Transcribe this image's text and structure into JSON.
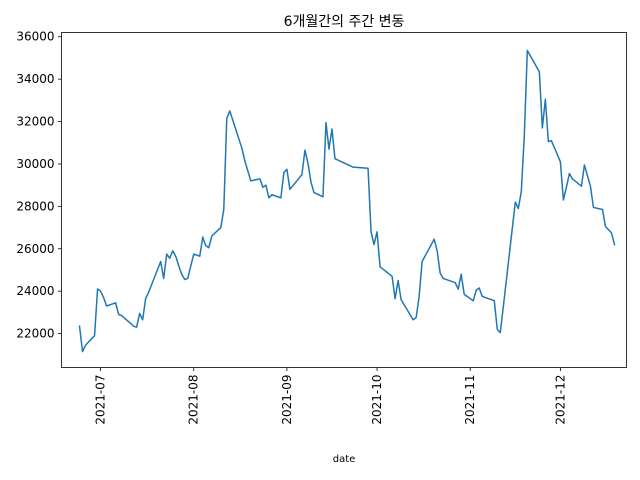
{
  "chart_data": {
    "type": "line",
    "title": "6개월간의 주간 변동",
    "xlabel": "date",
    "ylabel": "",
    "xlim": [
      "2021-06-18",
      "2021-12-23"
    ],
    "ylim": [
      20400,
      36200
    ],
    "grid": false,
    "x_ticks": [
      {
        "date": "2021-07-01",
        "label": "2021-07"
      },
      {
        "date": "2021-08-01",
        "label": "2021-08"
      },
      {
        "date": "2021-09-01",
        "label": "2021-09"
      },
      {
        "date": "2021-10-01",
        "label": "2021-10"
      },
      {
        "date": "2021-11-01",
        "label": "2021-11"
      },
      {
        "date": "2021-12-01",
        "label": "2021-12"
      }
    ],
    "y_ticks": [
      22000,
      24000,
      26000,
      28000,
      30000,
      32000,
      34000,
      36000
    ],
    "series": [
      {
        "name": "",
        "color": "#1f77b4",
        "points": [
          [
            "2021-06-24",
            22350
          ],
          [
            "2021-06-25",
            21150
          ],
          [
            "2021-06-26",
            21450
          ],
          [
            "2021-06-29",
            21900
          ],
          [
            "2021-06-30",
            24100
          ],
          [
            "2021-07-01",
            24000
          ],
          [
            "2021-07-02",
            23700
          ],
          [
            "2021-07-03",
            23300
          ],
          [
            "2021-07-06",
            23450
          ],
          [
            "2021-07-07",
            22900
          ],
          [
            "2021-07-08",
            22850
          ],
          [
            "2021-07-12",
            22350
          ],
          [
            "2021-07-13",
            22300
          ],
          [
            "2021-07-14",
            22950
          ],
          [
            "2021-07-15",
            22650
          ],
          [
            "2021-07-16",
            23650
          ],
          [
            "2021-07-17",
            23950
          ],
          [
            "2021-07-21",
            25400
          ],
          [
            "2021-07-22",
            24600
          ],
          [
            "2021-07-23",
            25750
          ],
          [
            "2021-07-24",
            25550
          ],
          [
            "2021-07-25",
            25900
          ],
          [
            "2021-07-26",
            25650
          ],
          [
            "2021-07-27",
            25200
          ],
          [
            "2021-07-28",
            24800
          ],
          [
            "2021-07-29",
            24550
          ],
          [
            "2021-07-30",
            24600
          ],
          [
            "2021-08-01",
            25750
          ],
          [
            "2021-08-03",
            25650
          ],
          [
            "2021-08-04",
            26550
          ],
          [
            "2021-08-05",
            26150
          ],
          [
            "2021-08-06",
            26050
          ],
          [
            "2021-08-07",
            26600
          ],
          [
            "2021-08-10",
            27000
          ],
          [
            "2021-08-11",
            27850
          ],
          [
            "2021-08-12",
            32150
          ],
          [
            "2021-08-13",
            32500
          ],
          [
            "2021-08-17",
            30750
          ],
          [
            "2021-08-18",
            30150
          ],
          [
            "2021-08-20",
            29200
          ],
          [
            "2021-08-23",
            29300
          ],
          [
            "2021-08-24",
            28900
          ],
          [
            "2021-08-25",
            29000
          ],
          [
            "2021-08-26",
            28400
          ],
          [
            "2021-08-27",
            28550
          ],
          [
            "2021-08-30",
            28400
          ],
          [
            "2021-08-31",
            29600
          ],
          [
            "2021-09-01",
            29750
          ],
          [
            "2021-09-02",
            28800
          ],
          [
            "2021-09-06",
            29500
          ],
          [
            "2021-09-07",
            30650
          ],
          [
            "2021-09-08",
            30050
          ],
          [
            "2021-09-09",
            29150
          ],
          [
            "2021-09-10",
            28650
          ],
          [
            "2021-09-13",
            28450
          ],
          [
            "2021-09-14",
            31950
          ],
          [
            "2021-09-15",
            30700
          ],
          [
            "2021-09-16",
            31650
          ],
          [
            "2021-09-17",
            30250
          ],
          [
            "2021-09-23",
            29850
          ],
          [
            "2021-09-28",
            29800
          ],
          [
            "2021-09-29",
            26800
          ],
          [
            "2021-09-30",
            26200
          ],
          [
            "2021-10-01",
            26800
          ],
          [
            "2021-10-02",
            25150
          ],
          [
            "2021-10-06",
            24700
          ],
          [
            "2021-10-07",
            23650
          ],
          [
            "2021-10-08",
            24500
          ],
          [
            "2021-10-09",
            23600
          ],
          [
            "2021-10-13",
            22650
          ],
          [
            "2021-10-14",
            22750
          ],
          [
            "2021-10-15",
            23750
          ],
          [
            "2021-10-16",
            25400
          ],
          [
            "2021-10-20",
            26450
          ],
          [
            "2021-10-21",
            25900
          ],
          [
            "2021-10-22",
            24850
          ],
          [
            "2021-10-23",
            24600
          ],
          [
            "2021-10-27",
            24400
          ],
          [
            "2021-10-28",
            24100
          ],
          [
            "2021-10-29",
            24800
          ],
          [
            "2021-10-30",
            23850
          ],
          [
            "2021-11-02",
            23550
          ],
          [
            "2021-11-03",
            24050
          ],
          [
            "2021-11-04",
            24150
          ],
          [
            "2021-11-05",
            23750
          ],
          [
            "2021-11-09",
            23550
          ],
          [
            "2021-11-10",
            22200
          ],
          [
            "2021-11-11",
            22050
          ],
          [
            "2021-11-12",
            23250
          ],
          [
            "2021-11-16",
            28200
          ],
          [
            "2021-11-17",
            27900
          ],
          [
            "2021-11-18",
            28700
          ],
          [
            "2021-11-19",
            31350
          ],
          [
            "2021-11-20",
            35350
          ],
          [
            "2021-11-24",
            34350
          ],
          [
            "2021-11-25",
            31700
          ],
          [
            "2021-11-26",
            33050
          ],
          [
            "2021-11-27",
            31050
          ],
          [
            "2021-11-28",
            31100
          ],
          [
            "2021-12-01",
            30100
          ],
          [
            "2021-12-02",
            28300
          ],
          [
            "2021-12-03",
            28900
          ],
          [
            "2021-12-04",
            29550
          ],
          [
            "2021-12-05",
            29300
          ],
          [
            "2021-12-08",
            28950
          ],
          [
            "2021-12-09",
            29950
          ],
          [
            "2021-12-11",
            28950
          ],
          [
            "2021-12-12",
            27950
          ],
          [
            "2021-12-15",
            27850
          ],
          [
            "2021-12-16",
            27050
          ],
          [
            "2021-12-18",
            26750
          ],
          [
            "2021-12-19",
            26200
          ]
        ]
      }
    ]
  }
}
